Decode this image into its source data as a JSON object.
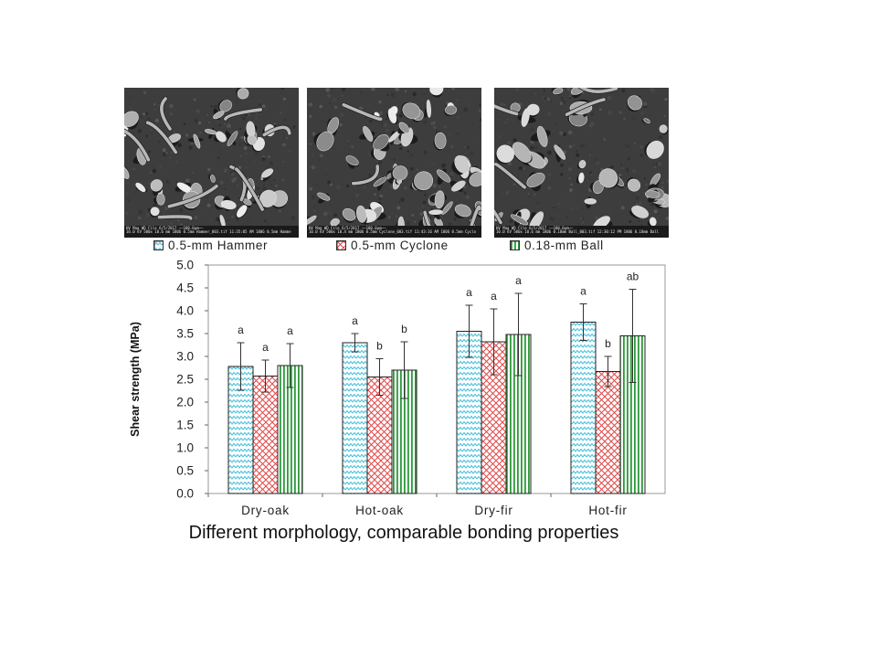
{
  "images": [
    {
      "name": "hammer",
      "info_line1": "HV    Mag    WD       File                          6/5/2017    ──100.0µm──",
      "info_line2": "10.0 kV 500x 10.6 mm 1806 0.5mm Hammer_003.tif 11:35:05 AM 1806 0.5mm Hamme"
    },
    {
      "name": "cyclone",
      "info_line1": "HV    Mag    WD       File                          6/5/2017    ──100.0µm──",
      "info_line2": "10.0 kV 500x 10.4 mm 1806 0.5mm Cyclone_003.tif 11:43:16 AM 1806 0.5mm Cyclo"
    },
    {
      "name": "ball",
      "info_line1": "HV    Mag    WD       File                          6/5/2017    ──100.0µm──",
      "info_line2": "10.0 kV 500x 10.6 mm 1806 0.18mm Ball_003.tif 12:30:12 PM 1806 0.18mm Ball"
    }
  ],
  "legend": [
    {
      "label": "0.5-mm Hammer",
      "color": "#5bc8e0",
      "pattern": "zigzag"
    },
    {
      "label": "0.5-mm Cyclone",
      "color": "#e04848",
      "pattern": "crosshatch"
    },
    {
      "label": "0.18-mm Ball",
      "color": "#2e9a3c",
      "pattern": "vertical"
    }
  ],
  "chart_data": {
    "type": "bar",
    "categories": [
      "Dry-oak",
      "Hot-oak",
      "Dry-fir",
      "Hot-fir"
    ],
    "ylabel": "Shear strength (MPa)",
    "ylim": [
      0,
      5
    ],
    "yticks": [
      "0.0",
      "0.5",
      "1.0",
      "1.5",
      "2.0",
      "2.5",
      "3.0",
      "3.5",
      "4.0",
      "4.5",
      "5.0"
    ],
    "series": [
      {
        "name": "0.5-mm Hammer",
        "values": [
          2.78,
          3.3,
          3.55,
          3.75
        ],
        "errors": [
          0.52,
          0.2,
          0.57,
          0.4
        ],
        "letters": [
          "a",
          "a",
          "a",
          "a"
        ]
      },
      {
        "name": "0.5-mm Cyclone",
        "values": [
          2.57,
          2.55,
          3.32,
          2.67
        ],
        "errors": [
          0.35,
          0.4,
          0.72,
          0.33
        ],
        "letters": [
          "a",
          "b",
          "a",
          "b"
        ]
      },
      {
        "name": "0.18-mm Ball",
        "values": [
          2.8,
          2.7,
          3.48,
          3.45
        ],
        "errors": [
          0.48,
          0.62,
          0.9,
          1.02
        ],
        "letters": [
          "a",
          "b",
          "a",
          "ab"
        ]
      }
    ]
  },
  "caption": "Different morphology, comparable bonding properties"
}
